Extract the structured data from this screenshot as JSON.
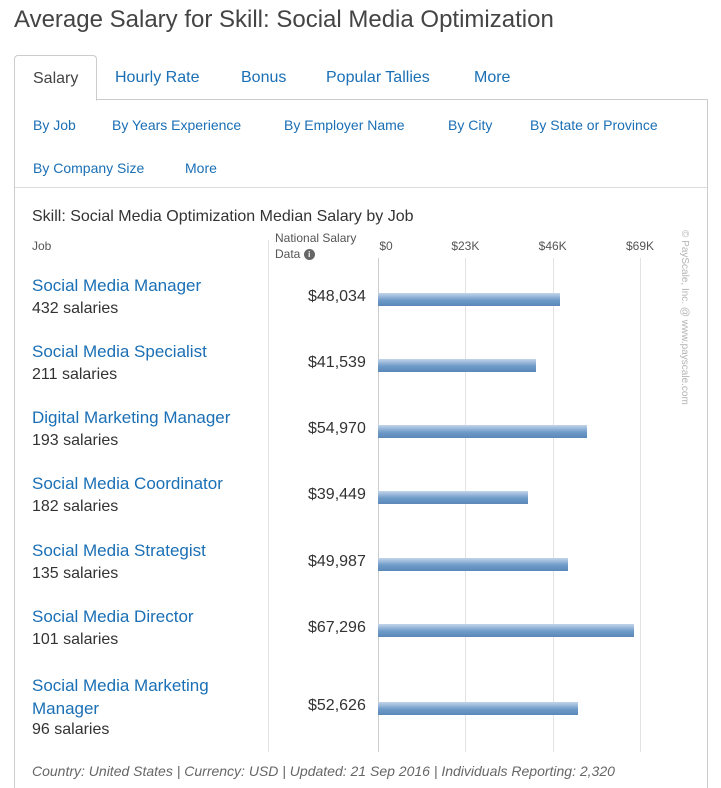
{
  "page": {
    "title": "Average Salary for Skill: Social Media Optimization"
  },
  "tabs": [
    {
      "label": "Salary",
      "active": true
    },
    {
      "label": "Hourly Rate"
    },
    {
      "label": "Bonus"
    },
    {
      "label": "Popular Tallies"
    },
    {
      "label": "More"
    }
  ],
  "subnav": [
    "By Job",
    "By Years Experience",
    "By Employer Name",
    "By City",
    "By State or Province",
    "By Company Size",
    "More"
  ],
  "colors": {
    "link": "#1a6fb5",
    "bar": "#6f9bc9"
  },
  "icons": {
    "info": "info-icon"
  },
  "chart_data": {
    "type": "bar",
    "orientation": "horizontal",
    "title": "Skill: Social Media Optimization Median Salary by Job",
    "column_job": "Job",
    "column_value": "National Salary Data",
    "x_ticks": [
      "$0",
      "$23K",
      "$46K",
      "$69K"
    ],
    "xlim": [
      0,
      69000
    ],
    "grid": true,
    "categories": [
      "Social Media Manager",
      "Social Media Specialist",
      "Digital Marketing Manager",
      "Social Media Coordinator",
      "Social Media Strategist",
      "Social Media Director",
      "Social Media Marketing Manager"
    ],
    "counts": [
      "432 salaries",
      "211 salaries",
      "193 salaries",
      "182 salaries",
      "135 salaries",
      "101 salaries",
      "96 salaries"
    ],
    "value_labels": [
      "$48,034",
      "$41,539",
      "$54,970",
      "$39,449",
      "$49,987",
      "$67,296",
      "$52,626"
    ],
    "values": [
      48034,
      41539,
      54970,
      39449,
      49987,
      67296,
      52626
    ]
  },
  "credit": "© PayScale, Inc. @ www.payscale.com",
  "footer": "Country: United States | Currency: USD | Updated: 21 Sep 2016 | Individuals Reporting: 2,320"
}
